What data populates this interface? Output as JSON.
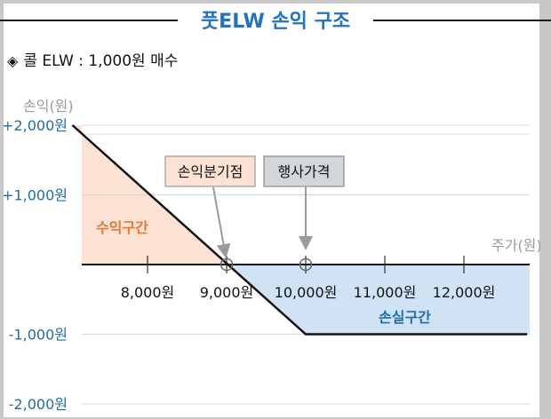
{
  "title": "풋ELW 손익 구조",
  "subtitle": "콜 ELW : 1,000원 매수",
  "subtitle_icon": "diamond-bullet-icon",
  "colors": {
    "title": "#1f73c2",
    "profit_fill": "#fbe2d2",
    "loss_fill": "#cfe3f4",
    "profit_text": "#e07a35",
    "loss_text": "#1f6ea8",
    "payoff_line": "#111111",
    "y_tick_text": "#1f6ea8",
    "callout_bg_1": "#fbe2d2",
    "callout_bg_2": "#d3d6da"
  },
  "chart_data": {
    "type": "line",
    "title": "풋ELW 손익 구조",
    "ylabel": "손익(원)",
    "xlabel": "주가(원)",
    "yticks": [
      "+2,000원",
      "+1,000원",
      "-1,000원",
      "-2,000원"
    ],
    "ytick_values": [
      2000,
      1000,
      -1000,
      -2000
    ],
    "xticks": [
      "8,000원",
      "9,000원",
      "10,000원",
      "11,000원",
      "12,000원"
    ],
    "xtick_values": [
      8000,
      9000,
      10000,
      11000,
      12000
    ],
    "xlim": [
      7200,
      12800
    ],
    "ylim": [
      -2000,
      2100
    ],
    "grid": true,
    "series": [
      {
        "x": [
          7050,
          10000,
          12800
        ],
        "y": [
          2000,
          -1000,
          -1000
        ]
      }
    ],
    "regions": [
      {
        "label": "수익구간",
        "type": "profit"
      },
      {
        "label": "손실구간",
        "type": "loss"
      }
    ],
    "annotations": [
      {
        "label": "손익분기점",
        "x": 9000,
        "y": 0
      },
      {
        "label": "행사가격",
        "x": 10000,
        "y": 0
      }
    ]
  }
}
